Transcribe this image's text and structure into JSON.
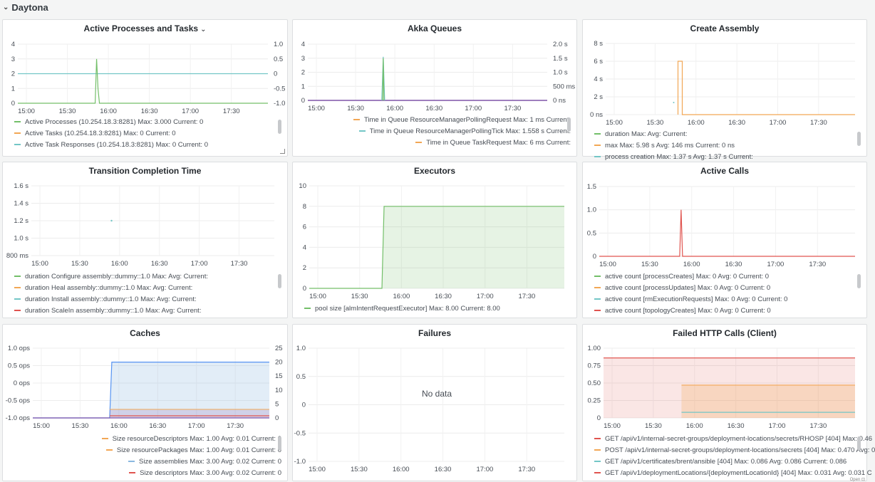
{
  "row": {
    "title": "Daytona"
  },
  "colors": {
    "green": "#73bf69",
    "cyan": "#8ab8e0",
    "orange": "#f2a755",
    "red": "#e0544f",
    "purple": "#7f54a8",
    "blue": "#5794f2",
    "teal": "#73c6c6"
  },
  "panels": [
    {
      "title": "Active Processes and Tasks",
      "has_menu": true,
      "axes": {
        "x_ticks": [
          "15:00",
          "15:30",
          "16:00",
          "16:30",
          "17:00",
          "17:30"
        ],
        "y_left": [
          "4",
          "3",
          "2",
          "1",
          "0"
        ],
        "y_right": [
          "1.0",
          "0.5",
          "0",
          "-0.5",
          "-1.0"
        ]
      },
      "legend": [
        {
          "text": "Active Processes (10.254.18.3:8281)  Max: 3.000  Current: 0",
          "color": "#73bf69"
        },
        {
          "text": "Active Tasks (10.254.18.3:8281)  Max: 0  Current: 0",
          "color": "#f2a755"
        },
        {
          "text": "Active Task Responses (10.254.18.3:8281)  Max: 0  Current: 0",
          "color": "#73c6c6"
        }
      ]
    },
    {
      "title": "Akka Queues",
      "axes": {
        "x_ticks": [
          "15:00",
          "15:30",
          "16:00",
          "16:30",
          "17:00",
          "17:30"
        ],
        "y_left": [
          "4",
          "3",
          "2",
          "1",
          "0"
        ],
        "y_right": [
          "2.0 s",
          "1.5 s",
          "1.0 s",
          "500 ms",
          "0 ns"
        ]
      },
      "legend": [
        {
          "text": "Time in Queue ResourceManagerPollingRequest  Max: 1 ms  Current:",
          "color": "#f2a755"
        },
        {
          "text": "Time in Queue ResourceManagerPollingTick  Max: 1.558 s  Current:",
          "color": "#73c6c6"
        },
        {
          "text": "Time in Queue TaskRequest  Max: 6 ms  Current:",
          "color": "#f2a755"
        }
      ]
    },
    {
      "title": "Create Assembly",
      "axes": {
        "x_ticks": [
          "15:00",
          "15:30",
          "16:00",
          "16:30",
          "17:00",
          "17:30"
        ],
        "y_left": [
          "8 s",
          "6 s",
          "4 s",
          "2 s",
          "0 ns"
        ]
      },
      "legend": [
        {
          "text": "duration  Max:   Avg:   Current:",
          "color": "#73bf69"
        },
        {
          "text": "max  Max: 5.98 s  Avg: 146 ms  Current: 0 ns",
          "color": "#f2a755"
        },
        {
          "text": "process creation  Max: 1.37 s  Avg: 1.37 s  Current:",
          "color": "#73c6c6"
        }
      ]
    },
    {
      "title": "Transition Completion Time",
      "axes": {
        "x_ticks": [
          "15:00",
          "15:30",
          "16:00",
          "16:30",
          "17:00",
          "17:30"
        ],
        "y_left": [
          "1.6 s",
          "1.4 s",
          "1.2 s",
          "1.0 s",
          "800 ms"
        ]
      },
      "legend": [
        {
          "text": "duration Configure assembly::dummy::1.0  Max:   Avg:   Current:",
          "color": "#73bf69"
        },
        {
          "text": "duration Heal assembly::dummy::1.0  Max:   Avg:   Current:",
          "color": "#f2a755"
        },
        {
          "text": "duration Install assembly::dummy::1.0  Max:   Avg:   Current:",
          "color": "#73c6c6"
        },
        {
          "text": "duration ScaleIn assembly::dummy::1.0  Max:   Avg:   Current:",
          "color": "#e0544f"
        }
      ]
    },
    {
      "title": "Executors",
      "axes": {
        "x_ticks": [
          "15:00",
          "15:30",
          "16:00",
          "16:30",
          "17:00",
          "17:30"
        ],
        "y_left": [
          "10",
          "8",
          "6",
          "4",
          "2",
          "0"
        ]
      },
      "legend": [
        {
          "text": "pool size [almIntentRequestExecutor]  Max: 8.00  Current: 8.00",
          "color": "#73bf69"
        }
      ]
    },
    {
      "title": "Active Calls",
      "axes": {
        "x_ticks": [
          "15:00",
          "15:30",
          "16:00",
          "16:30",
          "17:00",
          "17:30"
        ],
        "y_left": [
          "1.5",
          "1.0",
          "0.5",
          "0"
        ]
      },
      "legend": [
        {
          "text": "active count [processCreates]  Max: 0  Avg: 0  Current: 0",
          "color": "#73bf69"
        },
        {
          "text": "active count [processUpdates]  Max: 0  Avg: 0  Current: 0",
          "color": "#f2a755"
        },
        {
          "text": "active count [rmExecutionRequests]  Max: 0  Avg: 0  Current: 0",
          "color": "#73c6c6"
        },
        {
          "text": "active count [topologyCreates]  Max: 0  Avg: 0  Current: 0",
          "color": "#e0544f"
        }
      ]
    },
    {
      "title": "Caches",
      "axes": {
        "x_ticks": [
          "15:00",
          "15:30",
          "16:00",
          "16:30",
          "17:00",
          "17:30"
        ],
        "y_left": [
          "1.0 ops",
          "0.5 ops",
          "0 ops",
          "-0.5 ops",
          "-1.0 ops"
        ],
        "y_right": [
          "25",
          "20",
          "15",
          "10",
          "5",
          "0"
        ]
      },
      "legend": [
        {
          "text": "Size resourceDescriptors  Max: 1.00  Avg: 0.01  Current: 0",
          "color": "#f2a755"
        },
        {
          "text": "Size resourcePackages  Max: 1.00  Avg: 0.01  Current: 0",
          "color": "#f2a755"
        },
        {
          "text": "Size assemblies  Max: 3.00  Avg: 0.02  Current: 0",
          "color": "#8ab8e0"
        },
        {
          "text": "Size descriptors  Max: 3.00  Avg: 0.02  Current: 0",
          "color": "#e0544f"
        }
      ]
    },
    {
      "title": "Failures",
      "no_data": "No data",
      "axes": {
        "x_ticks": [
          "15:00",
          "15:30",
          "16:00",
          "16:30",
          "17:00",
          "17:30"
        ],
        "y_left": [
          "1.0",
          "0.5",
          "0",
          "-0.5",
          "-1.0"
        ]
      },
      "legend": []
    },
    {
      "title": "Failed HTTP Calls (Client)",
      "axes": {
        "x_ticks": [
          "15:00",
          "15:30",
          "16:00",
          "16:30",
          "17:00",
          "17:30"
        ],
        "y_left": [
          "1.00",
          "0.75",
          "0.50",
          "0.25",
          "0"
        ]
      },
      "legend": [
        {
          "text": "GET /api/v1/internal-secret-groups/deployment-locations/secrets/RHOSP [404]  Max: 0.46",
          "color": "#e0544f"
        },
        {
          "text": "POST /api/v1/internal-secret-groups/deployment-locations/secrets [404]  Max: 0.470  Avg: 0",
          "color": "#f2a755"
        },
        {
          "text": "GET /api/v1/certificates/brent/ansible [404]  Max: 0.086  Avg: 0.086  Current: 0.086",
          "color": "#73c6c6"
        },
        {
          "text": "GET /api/v1/deploymentLocations/{deploymentLocationId} [404]  Max: 0.031  Avg: 0.031  C",
          "color": "#e0544f"
        }
      ]
    }
  ],
  "credit": "Open ⊡"
}
